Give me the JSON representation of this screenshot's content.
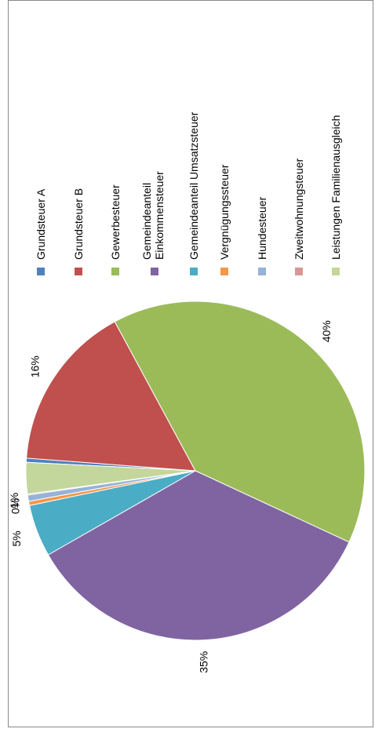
{
  "chart_data": {
    "type": "pie",
    "title": "",
    "legend_position": "right",
    "orientation": "rotated-90-clockwise",
    "slices": [
      {
        "name": "Grundsteuer A",
        "value": 0.4,
        "label": "",
        "color": "#4f81bd"
      },
      {
        "name": "Grundsteuer B",
        "value": 16,
        "label": "16%",
        "color": "#c0504d"
      },
      {
        "name": "Gewerbesteuer",
        "value": 40,
        "label": "40%",
        "color": "#9bbb59"
      },
      {
        "name": "Gemeindeanteil Einkommensteuer",
        "value": 35,
        "label": "35%",
        "color": "#8064a2"
      },
      {
        "name": "Gemeindeanteil Umsatzsteuer",
        "value": 5,
        "label": "5%",
        "color": "#4bacc6"
      },
      {
        "name": "Vergnügungssteuer",
        "value": 0.4,
        "label": "0%",
        "color": "#f79646"
      },
      {
        "name": "Hundesteuer",
        "value": 0.6,
        "label": "1%",
        "color": "#95b3d7"
      },
      {
        "name": "Zweitwohnungsteuer",
        "value": 0.1,
        "label": "",
        "color": "#d99694"
      },
      {
        "name": "Leistungen Familienausgleich",
        "value": 3,
        "label": "3%",
        "color": "#c3d69b"
      }
    ]
  }
}
